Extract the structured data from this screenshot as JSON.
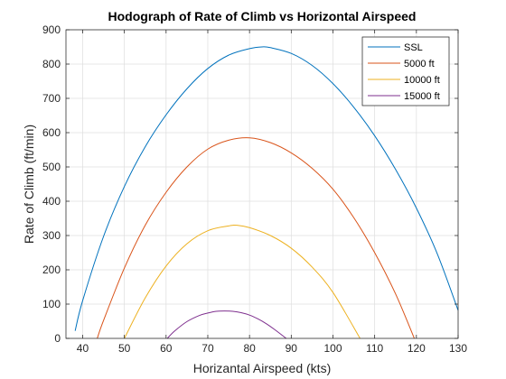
{
  "chart_data": {
    "type": "line",
    "title": "Hodograph of Rate of Climb vs Horizontal Airspeed",
    "xlabel": "Horizantal Airspeed (kts)",
    "ylabel": "Rate of Climb (ft/min)",
    "xlim": [
      36,
      130
    ],
    "ylim": [
      0,
      900
    ],
    "xticks": [
      40,
      50,
      60,
      70,
      80,
      90,
      100,
      110,
      120,
      130
    ],
    "yticks": [
      0,
      100,
      200,
      300,
      400,
      500,
      600,
      700,
      800,
      900
    ],
    "grid": true,
    "legend_position": "top-right",
    "series": [
      {
        "name": "SSL",
        "color": "#0072BD",
        "x": [
          38.2,
          40,
          45,
          50,
          55,
          60,
          65,
          70,
          75,
          80,
          83,
          85,
          90,
          95,
          100,
          105,
          110,
          115,
          120,
          125,
          130
        ],
        "y": [
          22,
          110,
          297,
          443,
          559,
          652,
          728,
          787,
          826,
          845,
          850,
          848,
          831,
          796,
          743,
          674,
          591,
          493,
          380,
          247,
          82
        ]
      },
      {
        "name": "5000 ft",
        "color": "#D95319",
        "x": [
          43.5,
          45,
          50,
          55,
          60,
          65,
          70,
          75,
          80,
          85,
          90,
          95,
          100,
          105,
          110,
          115,
          119.5
        ],
        "y": [
          0,
          52,
          205,
          330,
          426,
          500,
          552,
          578,
          585,
          571,
          541,
          496,
          435,
          352,
          250,
          130,
          0
        ]
      },
      {
        "name": "10000 ft",
        "color": "#EDB120",
        "x": [
          50,
          55,
          60,
          65,
          70,
          75,
          77,
          80,
          85,
          90,
          95,
          100,
          106.5
        ],
        "y": [
          0,
          118,
          211,
          276,
          314,
          328,
          330,
          323,
          300,
          263,
          208,
          134,
          0
        ]
      },
      {
        "name": "15000 ft",
        "color": "#7E2F8E",
        "x": [
          60.3,
          62,
          65,
          68,
          70,
          72,
          74,
          76,
          78,
          80,
          82,
          84,
          86,
          88.8
        ],
        "y": [
          0,
          21,
          49,
          67,
          74,
          79,
          80,
          79,
          75,
          68,
          57,
          43,
          26,
          0
        ]
      }
    ]
  }
}
